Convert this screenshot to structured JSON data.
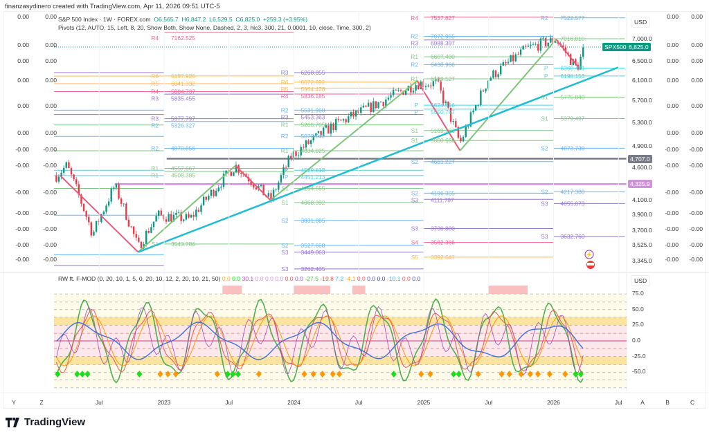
{
  "credit": "finanzasydinero created with TradingView.com, Apr 11, 2026 09:51 UTC-5",
  "legend": {
    "symbol": "S&P 500 Index · 1W · FOREX.com",
    "o": "O6,565.7",
    "h": "H6,847.2",
    "l": "L6,529.5",
    "c": "C6,825.0",
    "chg": "+259.3 (+3.95%)",
    "pivots": "Pivots (12, AUTO, 15, Left, 8, 20, Show Both, Show None, Dashed, 2, 3, hlc3, 300, 21, 0.0001, 10, close, Time, 300, 2)",
    "osc_name": "RW ft. F-MOD (0, 20, 10, 1, 5, 0, 20, 10, 12, 2, 20, 10, 21, 50)",
    "osc_values": [
      {
        "v": "0.0",
        "color": "#ffa726"
      },
      {
        "v": "0.0",
        "color": "#00e600"
      },
      {
        "v": "30.1",
        "color": "#ab47bc"
      },
      {
        "v": "0.0",
        "color": "#ce93d8"
      },
      {
        "v": "0.0",
        "color": "#ce93d8"
      },
      {
        "v": "0.0",
        "color": "#ce93d8"
      },
      {
        "v": "0.0",
        "color": "#ef5350"
      },
      {
        "v": "0.0",
        "color": "#7e57c2"
      },
      {
        "v": "-27.5",
        "color": "#4caf50"
      },
      {
        "v": "-19.8",
        "color": "#ef5350"
      },
      {
        "v": "7.2",
        "color": "#42a5f5"
      },
      {
        "v": "-4.1",
        "color": "#ff9800"
      },
      {
        "v": "0.0",
        "color": "#ef5350"
      },
      {
        "v": "0.0",
        "color": "#3f51b5"
      },
      {
        "v": "0.0",
        "color": "#3f51b5"
      },
      {
        "v": "-10.1",
        "color": "#42a5f5"
      },
      {
        "v": "0.0",
        "color": "#ef5350"
      },
      {
        "v": "0.0",
        "color": "#3f51b5"
      }
    ]
  },
  "side_values": [
    {
      "v": "0.00",
      "p": 7540
    },
    {
      "v": "0.00",
      "p": 6860
    },
    {
      "v": "0.00",
      "p": 6500
    },
    {
      "v": "0.00",
      "p": 6100
    },
    {
      "v": "0.00",
      "p": 5600
    },
    {
      "v": "0.00",
      "p": 5120
    },
    {
      "v": "-0.00",
      "p": 4840
    },
    {
      "v": "-0.00",
      "p": 4600
    },
    {
      "v": "-0.00",
      "p": 4200
    },
    {
      "v": "-0.00",
      "p": 3920
    },
    {
      "v": "-0.00",
      "p": 3720
    },
    {
      "v": "-0.00",
      "p": 3530
    },
    {
      "v": "-0.00",
      "p": 3360
    }
  ],
  "price_axis": {
    "currency": "USD",
    "ticks": [
      "7,000.0",
      "6,500.0",
      "6,100.0",
      "5,700.0",
      "5,300.0",
      "4,900.0",
      "4,600.0",
      "4,100.0",
      "3,900.0",
      "3,700.0",
      "3,525.0",
      "3,345.0"
    ],
    "tick_values": [
      7000,
      6500,
      6100,
      5700,
      5300,
      4900,
      4600,
      4100,
      3900,
      3700,
      3525,
      3345
    ]
  },
  "symbol_badge": {
    "name": "SPX500",
    "price": "6,825.0",
    "value": 6825,
    "color": "#089981"
  },
  "hlines": [
    {
      "label": "4,707.0",
      "value": 4707,
      "color": "#787b86"
    },
    {
      "label": "4,325.9",
      "value": 4325.9,
      "color": "#ce93d8"
    }
  ],
  "osc_axis": {
    "currency": "USD",
    "ticks": [
      "75.0",
      "50.0",
      "25.0",
      "0.0",
      "-25.0",
      "-50.0"
    ],
    "tick_values": [
      75,
      50,
      25,
      0,
      -25,
      -50
    ]
  },
  "time_axis": {
    "left": [
      "Y",
      "Z"
    ],
    "right": [
      "A",
      "B",
      "C"
    ],
    "ticks": [
      {
        "l": "Jul",
        "t": 2022.5
      },
      {
        "l": "2023",
        "t": 2023
      },
      {
        "l": "Jul",
        "t": 2023.5
      },
      {
        "l": "2024",
        "t": 2024
      },
      {
        "l": "Jul",
        "t": 2024.5
      },
      {
        "l": "2025",
        "t": 2025
      },
      {
        "l": "Jul",
        "t": 2025.5
      },
      {
        "l": "2026",
        "t": 2026
      },
      {
        "l": "Jul",
        "t": 2026.5
      }
    ]
  },
  "brand": "TradingView",
  "chart_data": {
    "type": "candlestick",
    "title": "S&P 500 Index · 1W · FOREX.com",
    "price_path": [
      [
        2022.17,
        4450
      ],
      [
        2022.25,
        4600
      ],
      [
        2022.45,
        3660
      ],
      [
        2022.62,
        4300
      ],
      [
        2022.8,
        3500
      ],
      [
        2022.95,
        3900
      ],
      [
        2023.2,
        3850
      ],
      [
        2023.55,
        4600
      ],
      [
        2023.82,
        4100
      ],
      [
        2023.98,
        4750
      ],
      [
        2024.3,
        5250
      ],
      [
        2024.6,
        5600
      ],
      [
        2024.95,
        6050
      ],
      [
        2025.1,
        6050
      ],
      [
        2025.28,
        4950
      ],
      [
        2025.5,
        6150
      ],
      [
        2025.8,
        6800
      ],
      [
        2026.02,
        7000
      ],
      [
        2026.18,
        6350
      ],
      [
        2026.24,
        6825
      ]
    ],
    "zigzag": [
      [
        2022.2,
        4450
      ],
      [
        2022.8,
        3450
      ],
      [
        2023.55,
        4600
      ],
      [
        2023.82,
        4100
      ],
      [
        2024.95,
        6100
      ],
      [
        2025.28,
        4835
      ],
      [
        2026.02,
        7000
      ],
      [
        2026.2,
        6350
      ]
    ],
    "trendline": [
      [
        2022.8,
        3450
      ],
      [
        2026.5,
        6380
      ]
    ],
    "pivot_periods": [
      {
        "start": 2023,
        "end": 2024,
        "levels": [
          [
            "R4",
            "7162.525"
          ],
          [
            "R6",
            "6197.926"
          ],
          [
            "R5",
            "6041.332"
          ],
          [
            "R4",
            "5884.737"
          ],
          [
            "R3",
            "5835.455"
          ],
          [
            "R3",
            "5377.797"
          ],
          [
            "R2",
            "5326.327"
          ],
          [
            "R2",
            "4870.856"
          ],
          [
            "R1",
            "4557.667"
          ],
          [
            "R1",
            "4508.385"
          ],
          [
            "S1",
            "3543.786"
          ]
        ]
      },
      {
        "start": 2024,
        "end": 2025,
        "levels": [
          [
            "R3",
            "6268.855"
          ],
          [
            "R6",
            "6072.692"
          ],
          [
            "R5",
            "5954.428"
          ],
          [
            "R4",
            "5836.185"
          ],
          [
            "R2",
            "5531.968"
          ],
          [
            "R3",
            "5453.363"
          ],
          [
            "R1",
            "5266.705"
          ],
          [
            "R2",
            "5070.042"
          ],
          [
            "R1",
            "4834.025"
          ],
          [
            "P",
            "4529.818"
          ],
          [
            "P",
            "4451.213"
          ],
          [
            "S1",
            "4264.555"
          ],
          [
            "S1",
            "4068.392"
          ],
          [
            "S2",
            "3831.885"
          ],
          [
            "S2",
            "3527.668"
          ],
          [
            "S3",
            "3449.063"
          ],
          [
            "S3",
            "3262.405"
          ]
        ]
      },
      {
        "start": 2025,
        "end": 2026,
        "levels": [
          [
            "R4",
            "7537.827"
          ],
          [
            "R2",
            "7072.955"
          ],
          [
            "R3",
            "6988.397"
          ],
          [
            "R1",
            "6607.480"
          ],
          [
            "R2",
            "6438.966"
          ],
          [
            "R1",
            "6139.527"
          ],
          [
            "P",
            "5624.416"
          ],
          [
            "P",
            "5550.797"
          ],
          [
            "S1",
            "5169.181"
          ],
          [
            "S1",
            "5000.666"
          ],
          [
            "S2",
            "4661.227"
          ],
          [
            "S2",
            "4196.355"
          ],
          [
            "S3",
            "4111.797"
          ],
          [
            "S3",
            "3730.880"
          ],
          [
            "S4",
            "3562.366"
          ],
          [
            "S5",
            "3392.647"
          ]
        ]
      },
      {
        "start": 2026,
        "end": 2026.55,
        "levels": [
          [
            "R2",
            "7522.577"
          ],
          [
            "R1",
            "7016.810"
          ],
          [
            "P",
            "6360.481"
          ],
          [
            "P",
            "6198.153"
          ],
          [
            "S1",
            "5775.840"
          ],
          [
            "S1",
            "5379.497"
          ],
          [
            "S2",
            "4873.730"
          ],
          [
            "S2",
            "4217.380"
          ],
          [
            "S3",
            "4055.073"
          ],
          [
            "S3",
            "3632.760"
          ]
        ]
      }
    ],
    "level_colors": {
      "R1": "#81c784",
      "S1": "#81c784",
      "R2": "#64b5f6",
      "S2": "#64b5f6",
      "R3": "#9575cd",
      "S3": "#9575cd",
      "R4": "#f06292",
      "S4": "#f06292",
      "R5": "#ffb74d",
      "R6": "#ffb74d",
      "S5": "#ffb74d",
      "P": "#4dd0e1"
    },
    "signals": {
      "green": [
        2022.18,
        2022.33,
        2022.37,
        2022.41,
        2022.81,
        2023.49,
        2023.53,
        2023.57,
        2024.77,
        2025.23,
        2025.27,
        2026.17,
        2026.21
      ],
      "orange": [
        2022.97,
        2023.03,
        2023.09,
        2023.41,
        2023.73,
        2024.08,
        2024.15,
        2024.22,
        2024.3,
        2024.35,
        2024.98,
        2025.05,
        2025.42,
        2025.6,
        2025.66,
        2025.75,
        2025.82,
        2025.88,
        2025.97,
        2026.09
      ]
    }
  }
}
